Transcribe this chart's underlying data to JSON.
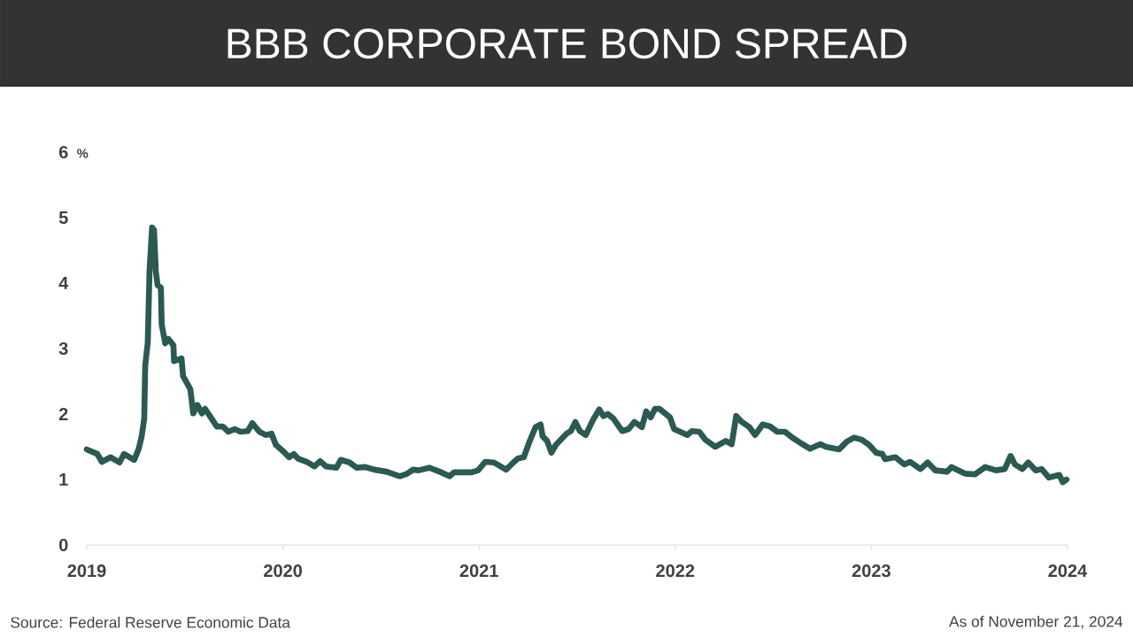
{
  "chart_data": {
    "type": "line",
    "title": "BBB CORPORATE BOND SPREAD",
    "ylabel": "%",
    "annotations": [
      "Source: Federal Reserve Economic Data",
      "As of November 21, 2024"
    ],
    "xlim": [
      2019,
      2024
    ],
    "ylim": [
      0,
      6
    ],
    "xticks": [
      2019,
      2020,
      2021,
      2022,
      2023,
      2024
    ],
    "yticks": [
      0,
      1,
      2,
      3,
      4,
      5,
      6
    ],
    "line_style": "solid",
    "series": [
      {
        "color": "#2a5a52",
        "x": [
          2019.0,
          2019.054,
          2019.077,
          2019.122,
          2019.167,
          2019.19,
          2019.242,
          2019.265,
          2019.28,
          2019.293,
          2019.298,
          2019.311,
          2019.32,
          2019.333,
          2019.343,
          2019.352,
          2019.361,
          2019.378,
          2019.382,
          2019.4,
          2019.415,
          2019.442,
          2019.445,
          2019.483,
          2019.491,
          2019.528,
          2019.543,
          2019.564,
          2019.587,
          2019.603,
          2019.632,
          2019.663,
          2019.694,
          2019.722,
          2019.754,
          2019.784,
          2019.821,
          2019.844,
          2019.88,
          2019.912,
          2019.942,
          2019.964,
          2020.002,
          2020.032,
          2020.055,
          2020.077,
          2020.122,
          2020.16,
          2020.19,
          2020.22,
          2020.273,
          2020.295,
          2020.34,
          2020.376,
          2020.421,
          2020.467,
          2020.528,
          2020.596,
          2020.634,
          2020.664,
          2020.692,
          2020.746,
          2020.799,
          2020.85,
          2020.873,
          2020.963,
          2020.995,
          2021.031,
          2021.076,
          2021.138,
          2021.175,
          2021.198,
          2021.228,
          2021.256,
          2021.288,
          2021.314,
          2021.324,
          2021.347,
          2021.369,
          2021.392,
          2021.446,
          2021.468,
          2021.491,
          2021.514,
          2021.544,
          2021.581,
          2021.613,
          2021.634,
          2021.657,
          2021.685,
          2021.73,
          2021.762,
          2021.792,
          2021.83,
          2021.852,
          2021.875,
          2021.897,
          2021.92,
          2021.973,
          2021.995,
          2022.062,
          2022.085,
          2022.123,
          2022.153,
          2022.204,
          2022.258,
          2022.288,
          2022.311,
          2022.339,
          2022.378,
          2022.407,
          2022.446,
          2022.484,
          2022.52,
          2022.559,
          2022.597,
          2022.633,
          2022.687,
          2022.74,
          2022.768,
          2022.836,
          2022.875,
          2022.912,
          2022.949,
          2022.988,
          2023.025,
          2023.056,
          2023.07,
          2023.123,
          2023.168,
          2023.197,
          2023.251,
          2023.287,
          2023.326,
          2023.386,
          2023.409,
          2023.477,
          2023.529,
          2023.58,
          2023.635,
          2023.68,
          2023.71,
          2023.732,
          2023.77,
          2023.8,
          2023.838,
          2023.868,
          2023.905,
          2023.958,
          2023.976,
          2023.995
        ],
        "values": [
          1.46,
          1.39,
          1.27,
          1.34,
          1.26,
          1.39,
          1.3,
          1.47,
          1.66,
          1.93,
          2.74,
          3.09,
          4.18,
          4.85,
          4.81,
          4.18,
          3.97,
          3.93,
          3.37,
          3.08,
          3.15,
          3.05,
          2.81,
          2.85,
          2.58,
          2.38,
          2.01,
          2.14,
          2.01,
          2.08,
          1.95,
          1.81,
          1.81,
          1.73,
          1.77,
          1.73,
          1.74,
          1.86,
          1.73,
          1.68,
          1.7,
          1.53,
          1.43,
          1.34,
          1.39,
          1.32,
          1.27,
          1.2,
          1.28,
          1.2,
          1.18,
          1.3,
          1.26,
          1.18,
          1.19,
          1.15,
          1.12,
          1.05,
          1.09,
          1.15,
          1.14,
          1.18,
          1.12,
          1.05,
          1.11,
          1.11,
          1.14,
          1.27,
          1.26,
          1.15,
          1.26,
          1.32,
          1.34,
          1.57,
          1.8,
          1.84,
          1.66,
          1.59,
          1.41,
          1.53,
          1.7,
          1.74,
          1.88,
          1.74,
          1.68,
          1.91,
          2.07,
          1.97,
          2.0,
          1.93,
          1.74,
          1.77,
          1.88,
          1.8,
          2.04,
          1.95,
          2.08,
          2.08,
          1.95,
          1.77,
          1.68,
          1.74,
          1.73,
          1.61,
          1.5,
          1.59,
          1.54,
          1.97,
          1.88,
          1.8,
          1.68,
          1.84,
          1.81,
          1.73,
          1.73,
          1.64,
          1.57,
          1.47,
          1.54,
          1.5,
          1.46,
          1.58,
          1.64,
          1.61,
          1.53,
          1.41,
          1.39,
          1.31,
          1.34,
          1.23,
          1.27,
          1.16,
          1.26,
          1.14,
          1.12,
          1.19,
          1.09,
          1.08,
          1.19,
          1.14,
          1.16,
          1.36,
          1.23,
          1.16,
          1.26,
          1.14,
          1.16,
          1.03,
          1.07,
          0.96,
          1.0
        ]
      }
    ]
  }
}
